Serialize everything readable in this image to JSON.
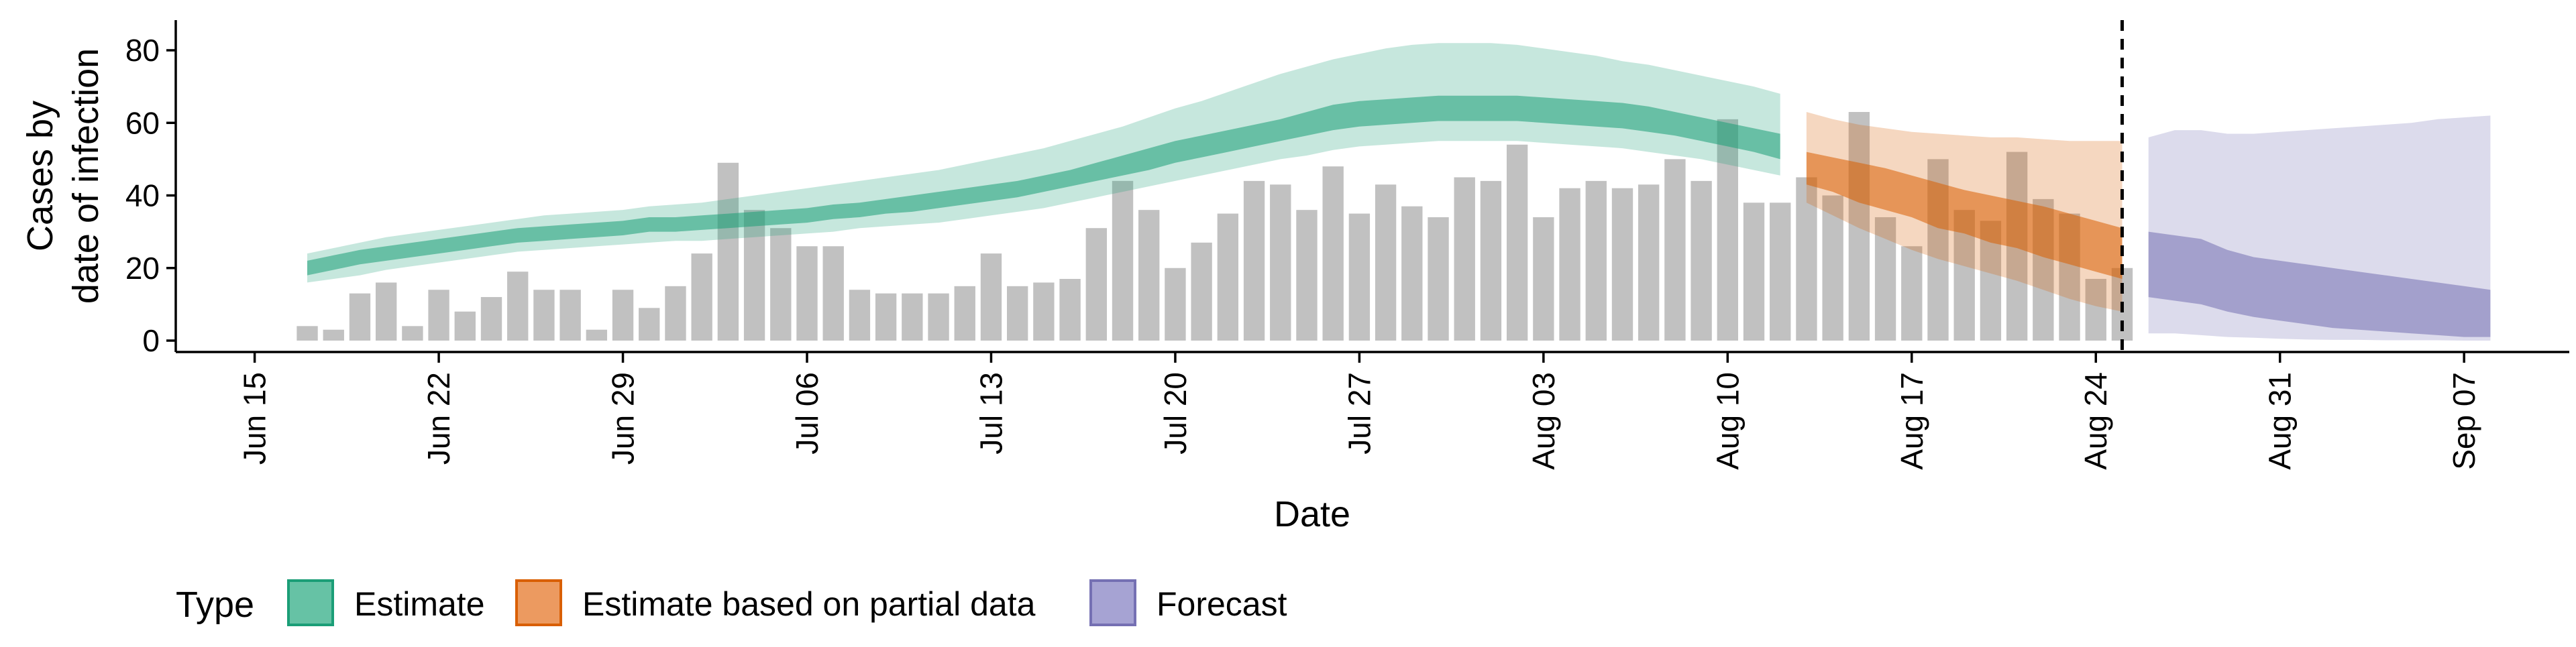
{
  "chart_data": {
    "type": "bar",
    "xlabel": "Date",
    "ylabel_lines": [
      "Cases by",
      "date of infection"
    ],
    "ylim": [
      0,
      88
    ],
    "yticks": [
      0,
      20,
      40,
      60,
      80
    ],
    "xlim": [
      "2020-06-12",
      "2020-09-11"
    ],
    "xticks": [
      "2020-06-15",
      "2020-06-22",
      "2020-06-29",
      "2020-07-06",
      "2020-07-13",
      "2020-07-20",
      "2020-07-27",
      "2020-08-03",
      "2020-08-10",
      "2020-08-17",
      "2020-08-24",
      "2020-08-31",
      "2020-09-07"
    ],
    "xtick_labels": [
      "Jun 15",
      "Jun 22",
      "Jun 29",
      "Jul 06",
      "Jul 13",
      "Jul 20",
      "Jul 27",
      "Aug 03",
      "Aug 10",
      "Aug 17",
      "Aug 24",
      "Aug 31",
      "Sep 07"
    ],
    "vline_date": "2020-08-25",
    "grid": false,
    "legend": {
      "position": "bottom",
      "title": "Type",
      "items": [
        {
          "label": "Estimate",
          "fill": "#66c2a5",
          "border": "#1b9e77"
        },
        {
          "label": "Estimate based on partial data",
          "fill": "#ec9a60",
          "border": "#d95f02"
        },
        {
          "label": "Forecast",
          "fill": "#a6a3d3",
          "border": "#7570b3"
        }
      ]
    },
    "colors": {
      "bars": "#bebebe",
      "estimate": "#1b9e77",
      "partial": "#d95f02",
      "forecast": "#7570b3",
      "vline": "#000000"
    },
    "bars": {
      "dates": [
        "2020-06-17",
        "2020-06-18",
        "2020-06-19",
        "2020-06-20",
        "2020-06-21",
        "2020-06-22",
        "2020-06-23",
        "2020-06-24",
        "2020-06-25",
        "2020-06-26",
        "2020-06-27",
        "2020-06-28",
        "2020-06-29",
        "2020-06-30",
        "2020-07-01",
        "2020-07-02",
        "2020-07-03",
        "2020-07-04",
        "2020-07-05",
        "2020-07-06",
        "2020-07-07",
        "2020-07-08",
        "2020-07-09",
        "2020-07-10",
        "2020-07-11",
        "2020-07-12",
        "2020-07-13",
        "2020-07-14",
        "2020-07-15",
        "2020-07-16",
        "2020-07-17",
        "2020-07-18",
        "2020-07-19",
        "2020-07-20",
        "2020-07-21",
        "2020-07-22",
        "2020-07-23",
        "2020-07-24",
        "2020-07-25",
        "2020-07-26",
        "2020-07-27",
        "2020-07-28",
        "2020-07-29",
        "2020-07-30",
        "2020-07-31",
        "2020-08-01",
        "2020-08-02",
        "2020-08-03",
        "2020-08-04",
        "2020-08-05",
        "2020-08-06",
        "2020-08-07",
        "2020-08-08",
        "2020-08-09",
        "2020-08-10",
        "2020-08-11",
        "2020-08-12",
        "2020-08-13",
        "2020-08-14",
        "2020-08-15",
        "2020-08-16",
        "2020-08-17",
        "2020-08-18",
        "2020-08-19",
        "2020-08-20",
        "2020-08-21",
        "2020-08-22",
        "2020-08-23",
        "2020-08-24",
        "2020-08-25"
      ],
      "values": [
        4,
        3,
        13,
        16,
        4,
        14,
        8,
        12,
        19,
        14,
        14,
        3,
        14,
        9,
        15,
        24,
        49,
        36,
        31,
        26,
        26,
        14,
        13,
        13,
        13,
        15,
        24,
        15,
        16,
        17,
        31,
        44,
        36,
        20,
        27,
        35,
        44,
        43,
        36,
        48,
        35,
        43,
        37,
        34,
        45,
        44,
        54,
        34,
        42,
        44,
        42,
        43,
        50,
        44,
        61,
        38,
        38,
        45,
        40,
        63,
        34,
        26,
        50,
        36,
        33,
        52,
        39,
        35,
        17,
        20
      ]
    },
    "estimate": {
      "dates": [
        "2020-06-17",
        "2020-06-18",
        "2020-06-19",
        "2020-06-20",
        "2020-06-21",
        "2020-06-22",
        "2020-06-23",
        "2020-06-24",
        "2020-06-25",
        "2020-06-26",
        "2020-06-27",
        "2020-06-28",
        "2020-06-29",
        "2020-06-30",
        "2020-07-01",
        "2020-07-02",
        "2020-07-03",
        "2020-07-04",
        "2020-07-05",
        "2020-07-06",
        "2020-07-07",
        "2020-07-08",
        "2020-07-09",
        "2020-07-10",
        "2020-07-11",
        "2020-07-12",
        "2020-07-13",
        "2020-07-14",
        "2020-07-15",
        "2020-07-16",
        "2020-07-17",
        "2020-07-18",
        "2020-07-19",
        "2020-07-20",
        "2020-07-21",
        "2020-07-22",
        "2020-07-23",
        "2020-07-24",
        "2020-07-25",
        "2020-07-26",
        "2020-07-27",
        "2020-07-28",
        "2020-07-29",
        "2020-07-30",
        "2020-07-31",
        "2020-08-01",
        "2020-08-02",
        "2020-08-03",
        "2020-08-04",
        "2020-08-05",
        "2020-08-06",
        "2020-08-07",
        "2020-08-08",
        "2020-08-09",
        "2020-08-10",
        "2020-08-11",
        "2020-08-12"
      ],
      "lower90": [
        16,
        17,
        18,
        19.5,
        20.5,
        21.5,
        22.5,
        23.5,
        24.5,
        25,
        25.5,
        26,
        26.5,
        27,
        27.5,
        27.5,
        28,
        28.5,
        29,
        29.5,
        30,
        31,
        31.5,
        32,
        32.5,
        33.5,
        34.5,
        35.5,
        36.5,
        38,
        39.5,
        41,
        42.5,
        44,
        45.5,
        47,
        48.5,
        50,
        51,
        52.5,
        53.5,
        54,
        54.5,
        55,
        55,
        55,
        55,
        54.5,
        54,
        53.5,
        53,
        52,
        51,
        50,
        48.5,
        47,
        45.5
      ],
      "lower50": [
        18,
        19.5,
        21,
        22,
        23,
        24,
        25,
        26,
        27,
        27.5,
        28,
        28.5,
        29,
        30,
        30,
        30.5,
        31,
        31.5,
        32,
        32.5,
        33.5,
        34,
        35,
        35.5,
        36.5,
        37.5,
        38.5,
        39.5,
        41,
        42.5,
        44,
        45.5,
        47,
        49,
        50.5,
        52,
        53.5,
        55,
        56.5,
        58,
        59,
        59.5,
        60,
        60.5,
        60.5,
        60.5,
        60.5,
        60,
        59.5,
        59,
        58.5,
        57.5,
        56.5,
        55,
        53.5,
        52,
        50
      ],
      "upper50": [
        22,
        23.5,
        25,
        26,
        27,
        28,
        29,
        30,
        31,
        31.5,
        32,
        32.5,
        33,
        34,
        34,
        34.5,
        35,
        35.5,
        36,
        36.5,
        37.5,
        38,
        39,
        40,
        41,
        42,
        43,
        44,
        45.5,
        47,
        49,
        51,
        53,
        55,
        56.5,
        58,
        59.5,
        61,
        63,
        65,
        66,
        66.5,
        67,
        67.5,
        67.5,
        67.5,
        67.5,
        67,
        66.5,
        66,
        65.5,
        64.5,
        63,
        61.5,
        60,
        58.5,
        57
      ],
      "upper90": [
        24,
        25.5,
        27,
        28.5,
        29.5,
        30.5,
        31.5,
        32.5,
        33.5,
        34.5,
        35,
        35.5,
        36,
        37,
        37.5,
        38,
        39,
        40,
        41,
        42,
        43,
        44,
        45,
        46,
        47,
        48.5,
        50,
        51.5,
        53,
        55,
        57,
        59,
        61.5,
        64,
        66,
        68.5,
        71,
        73.5,
        75.5,
        77.5,
        79,
        80.5,
        81.5,
        82,
        82,
        82,
        81.5,
        80.5,
        79.5,
        78.5,
        77,
        76,
        74.5,
        73,
        71.5,
        70,
        68
      ]
    },
    "partial": {
      "dates": [
        "2020-08-13",
        "2020-08-14",
        "2020-08-15",
        "2020-08-16",
        "2020-08-17",
        "2020-08-18",
        "2020-08-19",
        "2020-08-20",
        "2020-08-21",
        "2020-08-22",
        "2020-08-23",
        "2020-08-24",
        "2020-08-25"
      ],
      "lower90": [
        38,
        34.5,
        31,
        28,
        25,
        22.5,
        20.5,
        18.5,
        16.5,
        14,
        11.5,
        9.5,
        8
      ],
      "lower50": [
        43,
        41,
        38,
        36,
        34,
        31,
        29.5,
        27,
        25.5,
        23,
        21,
        19,
        17
      ],
      "upper50": [
        52,
        50.5,
        49,
        47.5,
        45.5,
        43.5,
        41.5,
        40,
        38.5,
        37,
        35,
        33,
        31
      ],
      "upper90": [
        63,
        61,
        59.5,
        58.5,
        57.5,
        57,
        56.5,
        56,
        56,
        55.5,
        55,
        55,
        55
      ]
    },
    "forecast": {
      "dates": [
        "2020-08-26",
        "2020-08-27",
        "2020-08-28",
        "2020-08-29",
        "2020-08-30",
        "2020-08-31",
        "2020-09-01",
        "2020-09-02",
        "2020-09-03",
        "2020-09-04",
        "2020-09-05",
        "2020-09-06",
        "2020-09-07",
        "2020-09-08"
      ],
      "lower90": [
        2,
        2,
        1.5,
        1,
        0.8,
        0.5,
        0.3,
        0.2,
        0.2,
        0.1,
        0.1,
        0.1,
        0,
        0
      ],
      "lower50": [
        12,
        11,
        10,
        8,
        6.5,
        5.5,
        4.5,
        3.5,
        3,
        2.5,
        2,
        1.5,
        1,
        1
      ],
      "upper50": [
        30,
        29,
        28,
        25,
        23,
        22,
        21,
        20,
        19,
        18,
        17,
        16,
        15,
        14
      ],
      "upper90": [
        56,
        58,
        58,
        57,
        57,
        57.5,
        58,
        58.5,
        59,
        59.5,
        60,
        61,
        61.5,
        62
      ]
    }
  }
}
